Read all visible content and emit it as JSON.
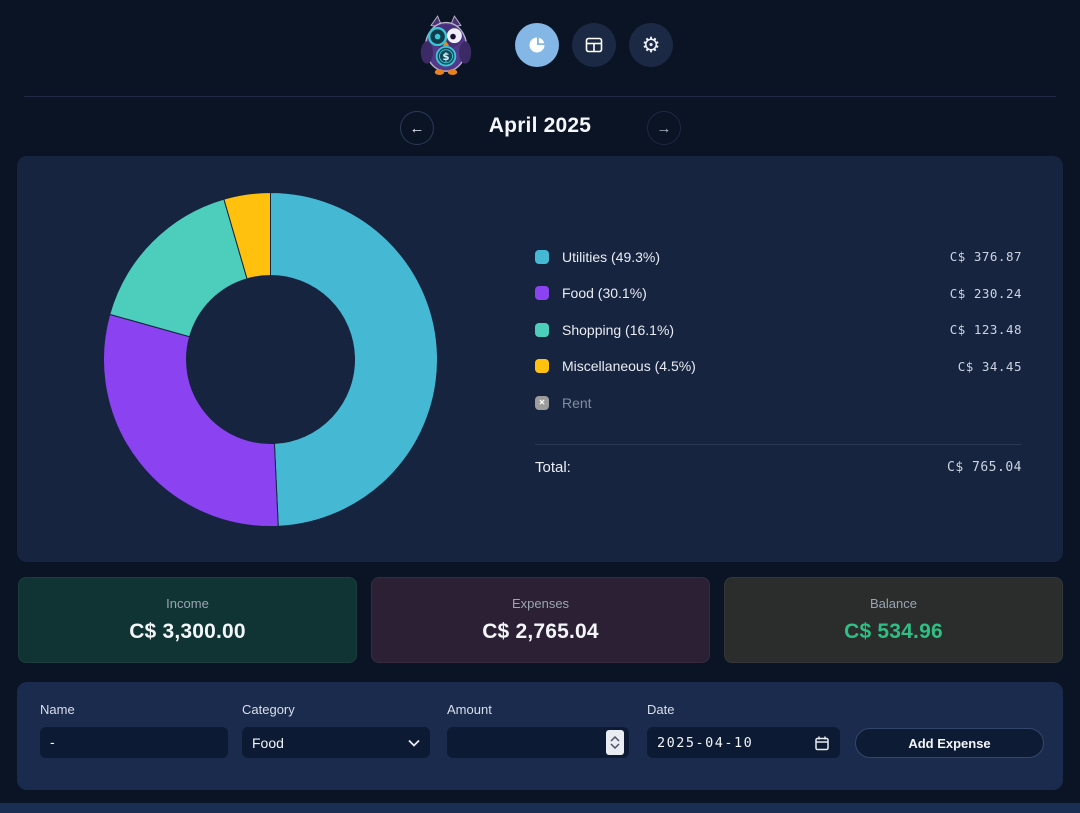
{
  "topbar": {
    "logo_name": "owl-finance-mascot",
    "buttons": [
      {
        "name": "chart-view",
        "icon": "pie-chart-icon",
        "active": true
      },
      {
        "name": "table-view",
        "icon": "table-icon",
        "active": false
      },
      {
        "name": "settings",
        "icon": "gear-icon",
        "active": false
      }
    ]
  },
  "month_nav": {
    "title": "April 2025",
    "prev_icon": "←",
    "next_icon": "→"
  },
  "chart_data": {
    "type": "pie",
    "donut": true,
    "title": "April 2025 expenses by category",
    "legend_position": "right",
    "categories": [
      "Utilities",
      "Food",
      "Shopping",
      "Miscellaneous"
    ],
    "values": [
      376.87,
      230.24,
      123.48,
      34.45
    ],
    "percentages": [
      49.3,
      30.1,
      16.1,
      4.5
    ],
    "legend_labels": [
      "Utilities (49.3%)",
      "Food (30.1%)",
      "Shopping (16.1%)",
      "Miscellaneous (4.5%)"
    ],
    "amount_labels": [
      "C$ 376.87",
      "C$ 230.24",
      "C$ 123.48",
      "C$ 34.45"
    ],
    "colors": [
      "#45B8D4",
      "#8B42F0",
      "#4DCDBB",
      "#FFC10D"
    ],
    "disabled_category": {
      "label": "Rent",
      "swatch_color": "#9C9C9C",
      "x_glyph": "✕"
    },
    "total_label": "Total:",
    "total_value": "C$ 765.04"
  },
  "summary_cards": [
    {
      "label": "Income",
      "value": "C$ 3,300.00",
      "bg": "#103433",
      "value_color": "#F3F5F8"
    },
    {
      "label": "Expenses",
      "value": "C$ 2,765.04",
      "bg": "#2C2134",
      "value_color": "#F3F5F8"
    },
    {
      "label": "Balance",
      "value": "C$ 534.96",
      "bg": "#2A2D2C",
      "value_color": "#2FBE83"
    }
  ],
  "form": {
    "fields": [
      {
        "label": "Name",
        "type": "text",
        "value": "-"
      },
      {
        "label": "Category",
        "type": "select",
        "value": "Food"
      },
      {
        "label": "Amount",
        "type": "number",
        "value": ""
      },
      {
        "label": "Date",
        "type": "date",
        "value": "2025-04-10"
      }
    ],
    "submit_label": "Add Expense"
  }
}
